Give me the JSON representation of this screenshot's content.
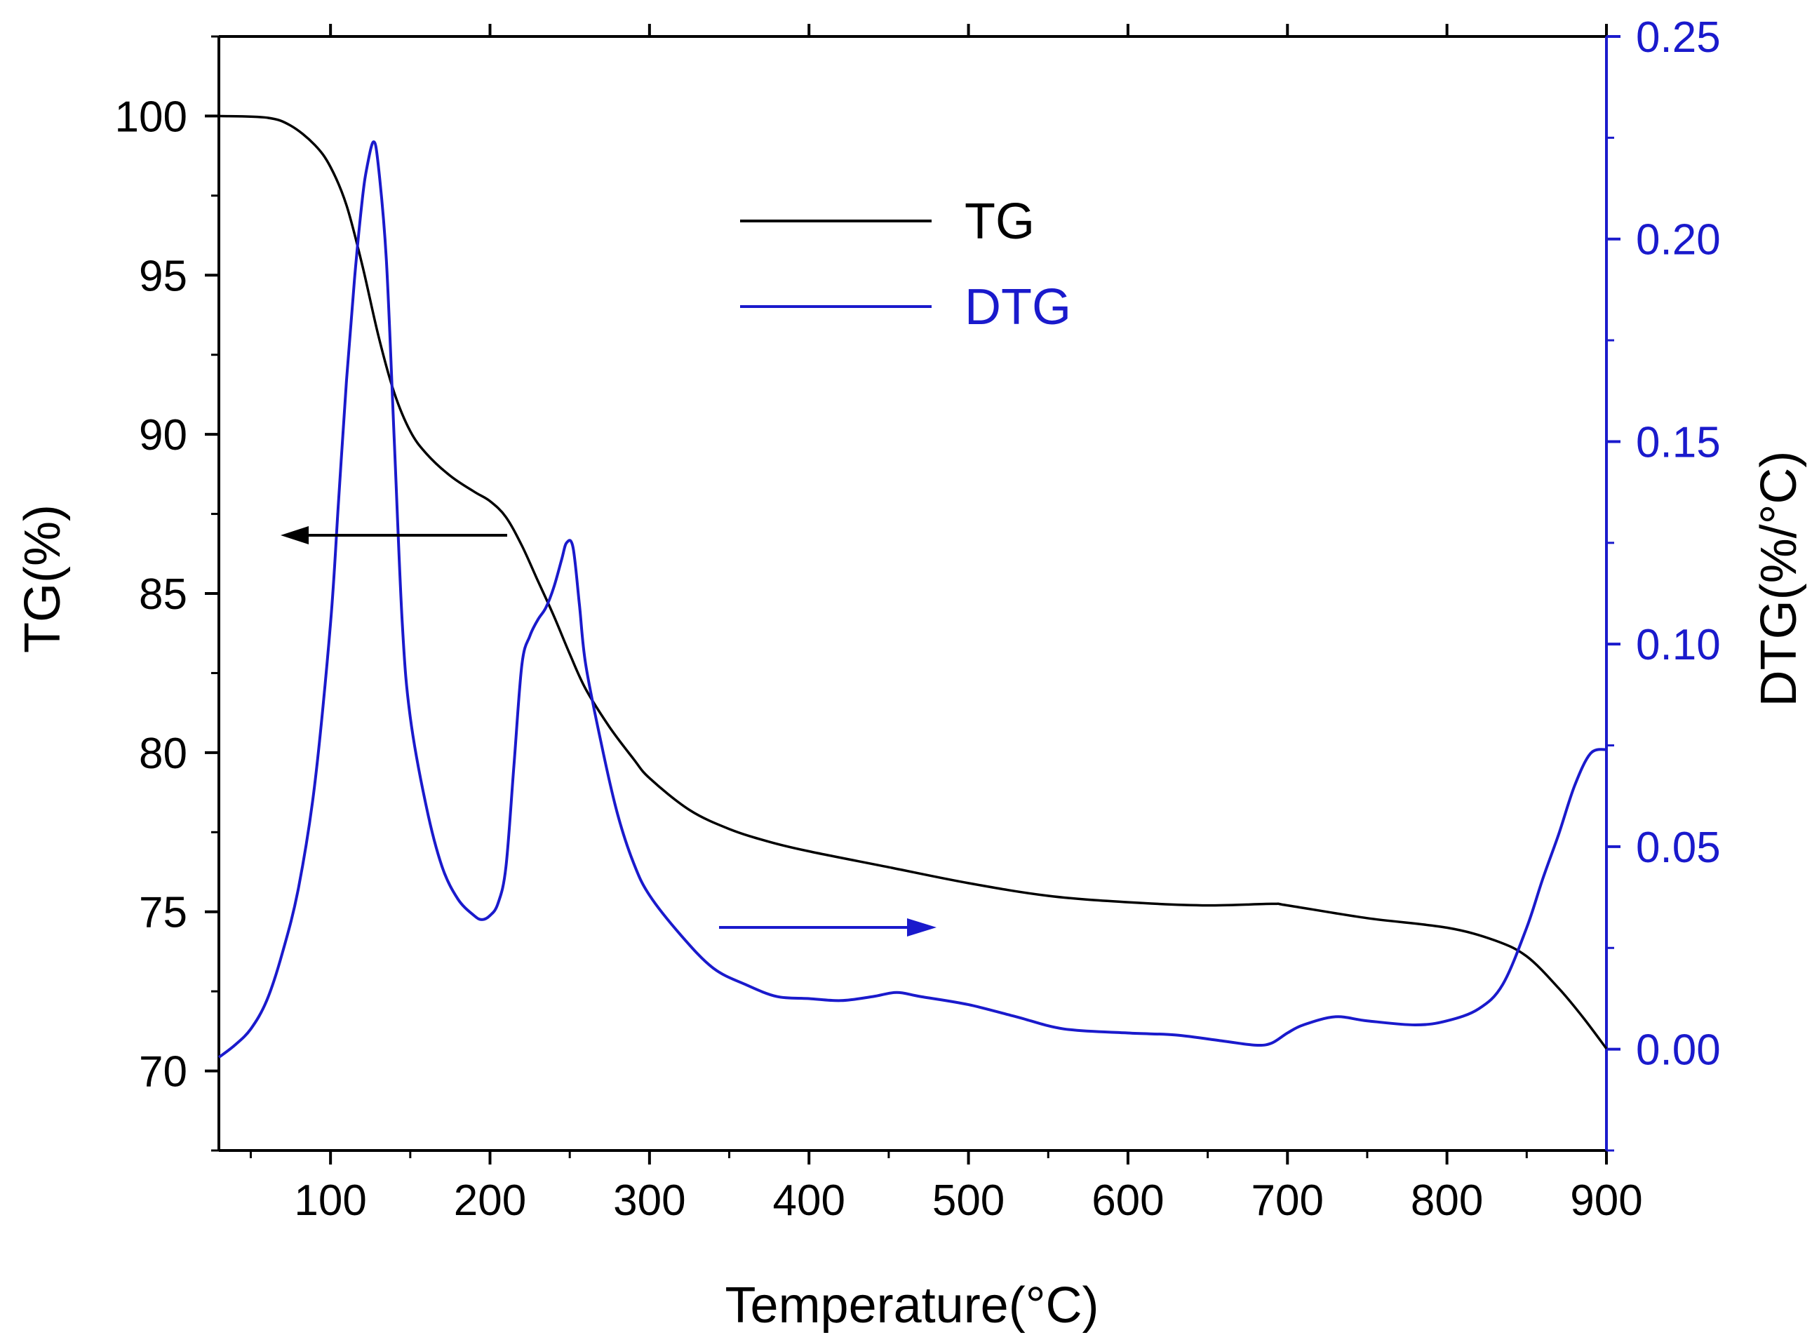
{
  "chart_data": {
    "type": "line",
    "title": "",
    "xlabel": "Temperature(°C)",
    "ylabel_left": "TG(%)",
    "ylabel_right": "DTG(%/°C)",
    "xlim": [
      30,
      900
    ],
    "ylim_left": [
      67.5,
      102.5
    ],
    "ylim_right": [
      -0.025,
      0.25
    ],
    "x_ticks": [
      100,
      200,
      300,
      400,
      500,
      600,
      700,
      800,
      900
    ],
    "y_left_ticks": [
      70,
      75,
      80,
      85,
      90,
      95,
      100
    ],
    "y_right_ticks": [
      0.0,
      0.05,
      0.1,
      0.15,
      0.2,
      0.25
    ],
    "y_right_tick_labels": [
      "0.00",
      "0.05",
      "0.10",
      "0.15",
      "0.20",
      "0.25"
    ],
    "grid": false,
    "legend_position": "top-center",
    "colors": {
      "tg": "#000000",
      "dtg": "#1a1acc",
      "axis": "#000000",
      "right_axis": "#1a1acc"
    },
    "series": [
      {
        "name": "TG",
        "axis": "left",
        "color": "#000000",
        "x": [
          30,
          60,
          75,
          90,
          100,
          110,
          120,
          130,
          140,
          150,
          160,
          175,
          190,
          200,
          210,
          220,
          230,
          240,
          250,
          260,
          275,
          290,
          300,
          325,
          350,
          375,
          400,
          450,
          500,
          550,
          600,
          650,
          690,
          700,
          750,
          800,
          830,
          850,
          870,
          885,
          900
        ],
        "y": [
          100,
          99.95,
          99.7,
          99.1,
          98.4,
          97.2,
          95.3,
          93.1,
          91.3,
          90.1,
          89.4,
          88.7,
          88.2,
          87.9,
          87.4,
          86.5,
          85.4,
          84.3,
          83.1,
          82.0,
          80.8,
          79.8,
          79.2,
          78.2,
          77.6,
          77.2,
          76.9,
          76.4,
          75.9,
          75.5,
          75.3,
          75.2,
          75.25,
          75.2,
          74.8,
          74.5,
          74.1,
          73.6,
          72.6,
          71.7,
          70.7
        ]
      },
      {
        "name": "DTG",
        "axis": "right",
        "color": "#1a1acc",
        "x": [
          30,
          40,
          50,
          60,
          70,
          80,
          90,
          100,
          105,
          110,
          115,
          120,
          123,
          127,
          130,
          135,
          140,
          145,
          150,
          160,
          170,
          180,
          190,
          195,
          200,
          205,
          210,
          215,
          220,
          225,
          230,
          235,
          240,
          245,
          248,
          252,
          256,
          260,
          270,
          280,
          290,
          300,
          320,
          340,
          360,
          380,
          400,
          420,
          440,
          455,
          470,
          500,
          530,
          560,
          600,
          630,
          660,
          680,
          690,
          700,
          710,
          730,
          750,
          780,
          800,
          820,
          835,
          850,
          860,
          870,
          880,
          890,
          900
        ],
        "y": [
          -0.002,
          0.001,
          0.005,
          0.012,
          0.024,
          0.04,
          0.065,
          0.105,
          0.135,
          0.165,
          0.19,
          0.21,
          0.218,
          0.224,
          0.218,
          0.195,
          0.15,
          0.105,
          0.082,
          0.06,
          0.045,
          0.037,
          0.033,
          0.032,
          0.033,
          0.036,
          0.045,
          0.07,
          0.095,
          0.102,
          0.106,
          0.109,
          0.114,
          0.121,
          0.125,
          0.124,
          0.11,
          0.095,
          0.075,
          0.058,
          0.046,
          0.038,
          0.028,
          0.02,
          0.016,
          0.013,
          0.0125,
          0.012,
          0.013,
          0.014,
          0.013,
          0.011,
          0.008,
          0.005,
          0.004,
          0.0035,
          0.002,
          0.001,
          0.0015,
          0.004,
          0.006,
          0.008,
          0.007,
          0.006,
          0.007,
          0.01,
          0.016,
          0.03,
          0.042,
          0.053,
          0.065,
          0.073,
          0.074
        ]
      }
    ],
    "annotations": [
      {
        "type": "arrow",
        "direction": "left",
        "meaning": "TG curve reads against left axis"
      },
      {
        "type": "arrow",
        "direction": "right",
        "meaning": "DTG curve reads against right axis"
      }
    ]
  }
}
